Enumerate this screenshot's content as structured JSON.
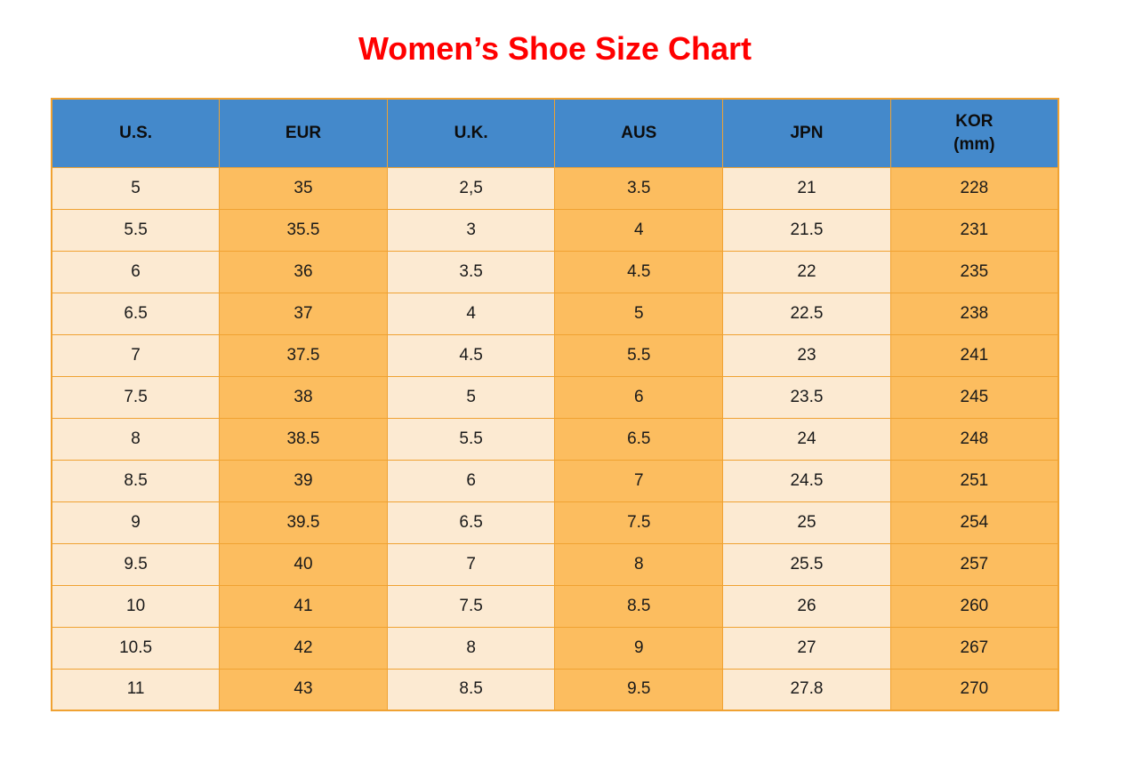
{
  "page": {
    "title": "Women’s Shoe Size Chart"
  },
  "colors": {
    "title_red": "#ff0000",
    "header_blue": "#4489cb",
    "border_orange": "#f0a232",
    "cell_cream": "#fcead2",
    "cell_orange": "#fcbd5f"
  },
  "table": {
    "columns": [
      {
        "label": "U.S.",
        "sublabel": ""
      },
      {
        "label": "EUR",
        "sublabel": ""
      },
      {
        "label": "U.K.",
        "sublabel": ""
      },
      {
        "label": "AUS",
        "sublabel": ""
      },
      {
        "label": "JPN",
        "sublabel": ""
      },
      {
        "label": "KOR",
        "sublabel": "(mm)"
      }
    ],
    "rows": [
      [
        "5",
        "35",
        "2,5",
        "3.5",
        "21",
        "228"
      ],
      [
        "5.5",
        "35.5",
        "3",
        "4",
        "21.5",
        "231"
      ],
      [
        "6",
        "36",
        "3.5",
        "4.5",
        "22",
        "235"
      ],
      [
        "6.5",
        "37",
        "4",
        "5",
        "22.5",
        "238"
      ],
      [
        "7",
        "37.5",
        "4.5",
        "5.5",
        "23",
        "241"
      ],
      [
        "7.5",
        "38",
        "5",
        "6",
        "23.5",
        "245"
      ],
      [
        "8",
        "38.5",
        "5.5",
        "6.5",
        "24",
        "248"
      ],
      [
        "8.5",
        "39",
        "6",
        "7",
        "24.5",
        "251"
      ],
      [
        "9",
        "39.5",
        "6.5",
        "7.5",
        "25",
        "254"
      ],
      [
        "9.5",
        "40",
        "7",
        "8",
        "25.5",
        "257"
      ],
      [
        "10",
        "41",
        "7.5",
        "8.5",
        "26",
        "260"
      ],
      [
        "10.5",
        "42",
        "8",
        "9",
        "27",
        "267"
      ],
      [
        "11",
        "43",
        "8.5",
        "9.5",
        "27.8",
        "270"
      ]
    ]
  },
  "chart_data": {
    "type": "table",
    "title": "Women’s Shoe Size Chart",
    "columns": [
      "U.S.",
      "EUR",
      "U.K.",
      "AUS",
      "JPN",
      "KOR (mm)"
    ],
    "rows": [
      [
        "5",
        "35",
        "2,5",
        "3.5",
        "21",
        "228"
      ],
      [
        "5.5",
        "35.5",
        "3",
        "4",
        "21.5",
        "231"
      ],
      [
        "6",
        "36",
        "3.5",
        "4.5",
        "22",
        "235"
      ],
      [
        "6.5",
        "37",
        "4",
        "5",
        "22.5",
        "238"
      ],
      [
        "7",
        "37.5",
        "4.5",
        "5.5",
        "23",
        "241"
      ],
      [
        "7.5",
        "38",
        "5",
        "6",
        "23.5",
        "245"
      ],
      [
        "8",
        "38.5",
        "5.5",
        "6.5",
        "24",
        "248"
      ],
      [
        "8.5",
        "39",
        "6",
        "7",
        "24.5",
        "251"
      ],
      [
        "9",
        "39.5",
        "6.5",
        "7.5",
        "25",
        "254"
      ],
      [
        "9.5",
        "40",
        "7",
        "8",
        "25.5",
        "257"
      ],
      [
        "10",
        "41",
        "7.5",
        "8.5",
        "26",
        "260"
      ],
      [
        "10.5",
        "42",
        "8",
        "9",
        "27",
        "267"
      ],
      [
        "11",
        "43",
        "8.5",
        "9.5",
        "27.8",
        "270"
      ]
    ],
    "layout_hints": {
      "header_background": "#4489cb",
      "odd_column_background": "#fcead2",
      "even_column_background": "#fcbd5f",
      "grid": "on"
    }
  }
}
